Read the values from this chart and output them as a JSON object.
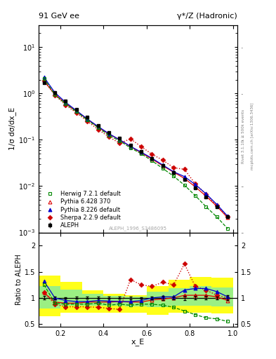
{
  "title_left": "91 GeV ee",
  "title_right": "γ*/Z (Hadronic)",
  "ylabel_main": "1/σ dσ/dx_E",
  "ylabel_ratio": "Ratio to ALEPH",
  "xlabel": "x_E",
  "right_label_top": "Rivet 3.1.10, ≥ 500k events",
  "right_label_bottom": "mcplots.cern.ch [arXiv:1306.3436]",
  "watermark": "ALEPH_1996_S3486095",
  "aleph_x": [
    0.125,
    0.175,
    0.225,
    0.275,
    0.325,
    0.375,
    0.425,
    0.475,
    0.525,
    0.575,
    0.625,
    0.675,
    0.725,
    0.775,
    0.825,
    0.875,
    0.925,
    0.975
  ],
  "aleph_y": [
    1.7,
    1.05,
    0.68,
    0.46,
    0.305,
    0.205,
    0.145,
    0.108,
    0.078,
    0.057,
    0.04,
    0.028,
    0.02,
    0.014,
    0.0092,
    0.0058,
    0.0036,
    0.0022
  ],
  "aleph_yerr": [
    0.06,
    0.025,
    0.012,
    0.009,
    0.006,
    0.004,
    0.003,
    0.002,
    0.002,
    0.001,
    0.001,
    0.001,
    0.0005,
    0.0005,
    0.0003,
    0.0002,
    0.0001,
    0.0001
  ],
  "herwig_ratio": [
    1.25,
    0.9,
    0.88,
    0.88,
    0.88,
    0.9,
    0.86,
    0.88,
    0.86,
    0.88,
    0.88,
    0.86,
    0.82,
    0.75,
    0.68,
    0.62,
    0.6,
    0.55
  ],
  "pythia6_ratio": [
    1.1,
    0.92,
    0.9,
    0.9,
    0.92,
    0.92,
    0.92,
    0.93,
    0.92,
    0.92,
    0.96,
    0.98,
    1.0,
    1.05,
    1.05,
    1.05,
    1.02,
    0.95
  ],
  "pythia8_ratio": [
    1.32,
    1.0,
    0.95,
    0.93,
    0.93,
    0.95,
    0.94,
    0.93,
    0.93,
    0.95,
    1.0,
    1.02,
    1.02,
    1.15,
    1.18,
    1.18,
    1.12,
    1.02
  ],
  "sherpa_ratio": [
    1.1,
    0.88,
    0.83,
    0.83,
    0.83,
    0.82,
    0.8,
    0.78,
    1.35,
    1.25,
    1.22,
    1.3,
    1.25,
    1.65,
    1.22,
    1.15,
    1.05,
    1.0
  ],
  "band_yellow_xlo": [
    0.1,
    0.2,
    0.3,
    0.4,
    0.5,
    0.6,
    0.7,
    0.8,
    0.9
  ],
  "band_yellow_xhi": [
    0.2,
    0.3,
    0.4,
    0.5,
    0.6,
    0.7,
    0.8,
    0.9,
    1.0
  ],
  "band_yellow_lo": [
    0.65,
    0.72,
    0.72,
    0.72,
    0.72,
    0.68,
    0.72,
    0.72,
    0.7
  ],
  "band_yellow_hi": [
    1.42,
    1.3,
    1.15,
    1.08,
    1.05,
    1.22,
    1.35,
    1.4,
    1.38
  ],
  "band_green_xlo": [
    0.1,
    0.2,
    0.3,
    0.4,
    0.5,
    0.6,
    0.7,
    0.8,
    0.9
  ],
  "band_green_xhi": [
    0.2,
    0.3,
    0.4,
    0.5,
    0.6,
    0.7,
    0.8,
    0.9,
    1.0
  ],
  "band_green_lo": [
    0.8,
    0.85,
    0.85,
    0.85,
    0.84,
    0.82,
    0.85,
    0.85,
    0.84
  ],
  "band_green_hi": [
    1.22,
    1.16,
    1.08,
    1.04,
    1.03,
    1.12,
    1.18,
    1.22,
    1.2
  ],
  "color_aleph": "#000000",
  "color_herwig": "#008800",
  "color_pythia6": "#dd0000",
  "color_pythia8": "#0000cc",
  "color_sherpa": "#cc0000",
  "ylim_main": [
    0.001,
    30
  ],
  "ylim_ratio": [
    0.45,
    2.25
  ],
  "xlim": [
    0.1,
    1.02
  ]
}
